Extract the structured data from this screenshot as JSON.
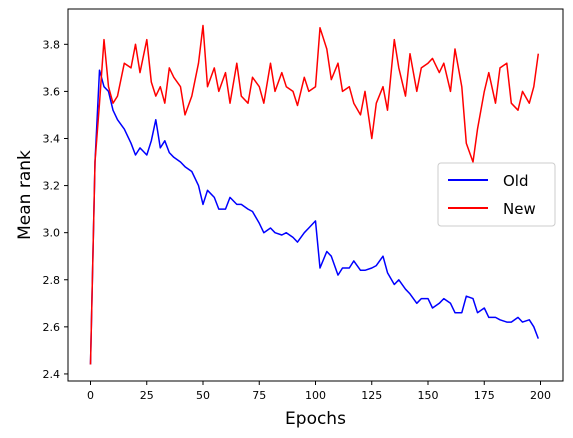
{
  "chart_data": {
    "type": "line",
    "title": "",
    "xlabel": "Epochs",
    "ylabel": "Mean rank",
    "xlim": [
      -10,
      210
    ],
    "ylim": [
      2.37,
      3.95
    ],
    "xticks": [
      0,
      25,
      50,
      75,
      100,
      125,
      150,
      175,
      200
    ],
    "yticks": [
      2.4,
      2.6,
      2.8,
      3.0,
      3.2,
      3.4,
      3.6,
      3.8
    ],
    "grid": false,
    "legend": "center-right",
    "series": [
      {
        "name": "Old",
        "color": "#0000ff",
        "x": [
          0,
          2,
          4,
          6,
          8,
          10,
          12,
          15,
          18,
          20,
          22,
          25,
          27,
          29,
          31,
          33,
          35,
          37,
          40,
          42,
          45,
          48,
          50,
          52,
          55,
          57,
          60,
          62,
          65,
          67,
          70,
          72,
          75,
          77,
          80,
          82,
          85,
          87,
          90,
          92,
          95,
          97,
          100,
          102,
          105,
          107,
          110,
          112,
          115,
          117,
          120,
          122,
          125,
          127,
          130,
          132,
          135,
          137,
          140,
          142,
          145,
          147,
          150,
          152,
          155,
          157,
          160,
          162,
          165,
          167,
          170,
          172,
          175,
          177,
          180,
          182,
          185,
          187,
          190,
          192,
          195,
          197,
          199
        ],
        "values": [
          2.44,
          3.3,
          3.69,
          3.62,
          3.6,
          3.52,
          3.48,
          3.44,
          3.38,
          3.33,
          3.36,
          3.33,
          3.39,
          3.48,
          3.36,
          3.39,
          3.34,
          3.32,
          3.3,
          3.28,
          3.26,
          3.2,
          3.12,
          3.18,
          3.15,
          3.1,
          3.1,
          3.15,
          3.12,
          3.12,
          3.1,
          3.09,
          3.04,
          3.0,
          3.02,
          3.0,
          2.99,
          3.0,
          2.98,
          2.96,
          3.0,
          3.02,
          3.05,
          2.85,
          2.92,
          2.9,
          2.82,
          2.85,
          2.85,
          2.88,
          2.84,
          2.84,
          2.85,
          2.86,
          2.9,
          2.83,
          2.78,
          2.8,
          2.76,
          2.74,
          2.7,
          2.72,
          2.72,
          2.68,
          2.7,
          2.72,
          2.7,
          2.66,
          2.66,
          2.73,
          2.72,
          2.66,
          2.68,
          2.64,
          2.64,
          2.63,
          2.62,
          2.62,
          2.64,
          2.62,
          2.63,
          2.6,
          2.55
        ]
      },
      {
        "name": "New",
        "color": "#ff0000",
        "x": [
          0,
          2,
          4,
          6,
          8,
          10,
          12,
          15,
          18,
          20,
          22,
          25,
          27,
          29,
          31,
          33,
          35,
          37,
          40,
          42,
          45,
          48,
          50,
          52,
          55,
          57,
          60,
          62,
          65,
          67,
          70,
          72,
          75,
          77,
          80,
          82,
          85,
          87,
          90,
          92,
          95,
          97,
          100,
          102,
          105,
          107,
          110,
          112,
          115,
          117,
          120,
          122,
          125,
          127,
          130,
          132,
          135,
          137,
          140,
          142,
          145,
          147,
          150,
          152,
          155,
          157,
          160,
          162,
          165,
          167,
          170,
          172,
          175,
          177,
          180,
          182,
          185,
          187,
          190,
          192,
          195,
          197,
          199
        ],
        "values": [
          2.44,
          3.3,
          3.55,
          3.82,
          3.62,
          3.55,
          3.58,
          3.72,
          3.7,
          3.8,
          3.68,
          3.82,
          3.64,
          3.58,
          3.62,
          3.55,
          3.7,
          3.66,
          3.62,
          3.5,
          3.58,
          3.72,
          3.88,
          3.62,
          3.7,
          3.6,
          3.68,
          3.55,
          3.72,
          3.58,
          3.55,
          3.66,
          3.62,
          3.55,
          3.72,
          3.6,
          3.68,
          3.62,
          3.6,
          3.54,
          3.66,
          3.6,
          3.62,
          3.87,
          3.78,
          3.65,
          3.72,
          3.6,
          3.62,
          3.55,
          3.5,
          3.6,
          3.4,
          3.55,
          3.62,
          3.52,
          3.82,
          3.7,
          3.58,
          3.76,
          3.6,
          3.7,
          3.72,
          3.74,
          3.68,
          3.72,
          3.6,
          3.78,
          3.62,
          3.38,
          3.3,
          3.44,
          3.6,
          3.68,
          3.55,
          3.7,
          3.72,
          3.55,
          3.52,
          3.6,
          3.55,
          3.62,
          3.76
        ]
      }
    ]
  }
}
